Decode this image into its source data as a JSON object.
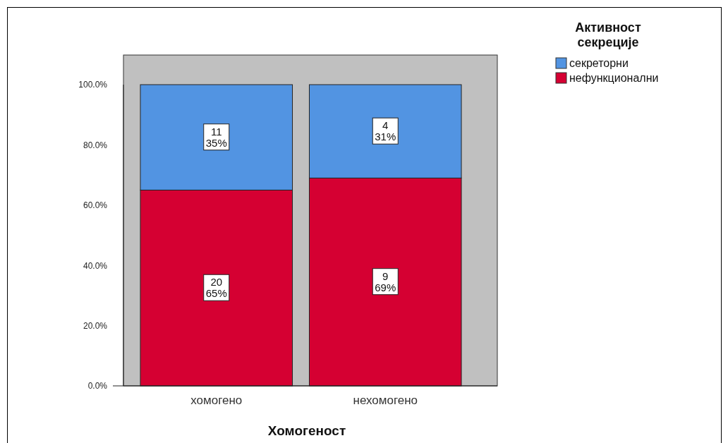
{
  "chart_data": {
    "type": "bar",
    "stacked": true,
    "categories": [
      "хомогено",
      "нехомогено"
    ],
    "series": [
      {
        "name": "нефункционални",
        "color": "#d50032",
        "values": [
          65,
          69
        ],
        "value_labels": [
          "20\n65%",
          "9\n69%"
        ]
      },
      {
        "name": "секреторни",
        "color": "#5294e2",
        "values": [
          35,
          31
        ],
        "value_labels": [
          "11\n35%",
          "4\n31%"
        ]
      }
    ],
    "xlabel": "Хомогеност",
    "legend_title": "Активност секреције",
    "legend": "top right",
    "ylim": [
      0,
      100
    ],
    "yticks": [
      {
        "value": 0,
        "label": "0.0%"
      },
      {
        "value": 20,
        "label": "20.0%"
      },
      {
        "value": 40,
        "label": "40.0%"
      },
      {
        "value": 60,
        "label": "60.0%"
      },
      {
        "value": 80,
        "label": "80.0%"
      },
      {
        "value": 100,
        "label": "100.0%"
      }
    ]
  }
}
